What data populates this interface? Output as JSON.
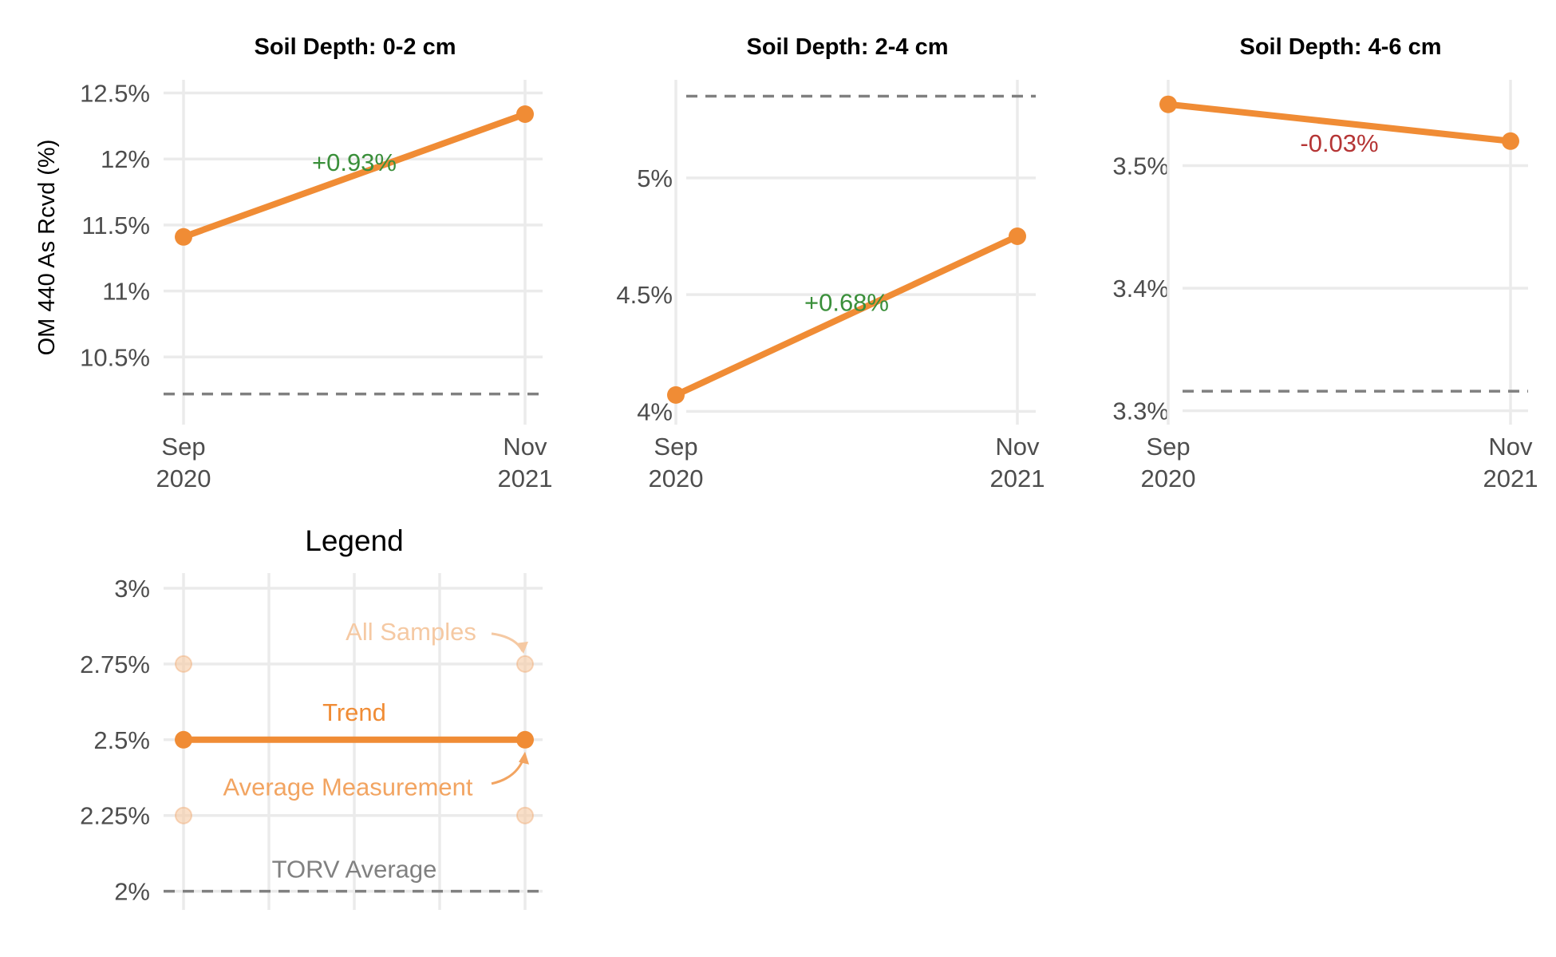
{
  "ylabel": "OM 440 As Rcvd (%)",
  "colors": {
    "trend": "#f08c35",
    "torv": "#808080",
    "up": "#3a8f3a",
    "down": "#b53535",
    "ghost": "#f5c9a3",
    "grid": "#ebebeb"
  },
  "chart_data": [
    {
      "type": "line",
      "title": "Soil Depth: 0-2 cm",
      "x": [
        "Sep\n2020",
        "Nov\n2021"
      ],
      "series": [
        {
          "values": [
            11.41,
            12.34
          ]
        }
      ],
      "torv_average": 10.22,
      "change_label": "+0.93%",
      "change_direction": "up",
      "yticks": [
        10.5,
        11,
        11.5,
        12,
        12.5
      ],
      "ytick_labels": [
        "10.5%",
        "11%",
        "11.5%",
        "12%",
        "12.5%"
      ],
      "ylim": [
        10.0,
        12.6
      ]
    },
    {
      "type": "line",
      "title": "Soil Depth: 2-4 cm",
      "x": [
        "Sep\n2020",
        "Nov\n2021"
      ],
      "series": [
        {
          "values": [
            4.07,
            4.75
          ]
        }
      ],
      "torv_average": 5.35,
      "change_label": "+0.68%",
      "change_direction": "up",
      "yticks": [
        4,
        4.5,
        5
      ],
      "ytick_labels": [
        "4%",
        "4.5%",
        "5%"
      ],
      "ylim": [
        3.95,
        5.42
      ]
    },
    {
      "type": "line",
      "title": "Soil Depth: 4-6 cm",
      "x": [
        "Sep\n2020",
        "Nov\n2021"
      ],
      "series": [
        {
          "values": [
            3.55,
            3.52
          ]
        }
      ],
      "torv_average": 3.316,
      "change_label": "-0.03%",
      "change_direction": "down",
      "yticks": [
        3.3,
        3.4,
        3.5
      ],
      "ytick_labels": [
        "3.3%",
        "3.4%",
        "3.5%"
      ],
      "ylim": [
        3.29,
        3.57
      ]
    }
  ],
  "legend": {
    "title": "Legend",
    "yticks": [
      2,
      2.25,
      2.5,
      2.75,
      3
    ],
    "ytick_labels": [
      "2%",
      "2.25%",
      "2.5%",
      "2.75%",
      "3%"
    ],
    "ylim": [
      1.97,
      3.05
    ],
    "trend_value": 2.5,
    "torv_value": 2.0,
    "sample_values": [
      2.25,
      2.75
    ],
    "labels": {
      "all_samples": "All Samples",
      "trend": "Trend",
      "average_measurement": "Average Measurement",
      "torv_average": "TORV Average"
    }
  }
}
